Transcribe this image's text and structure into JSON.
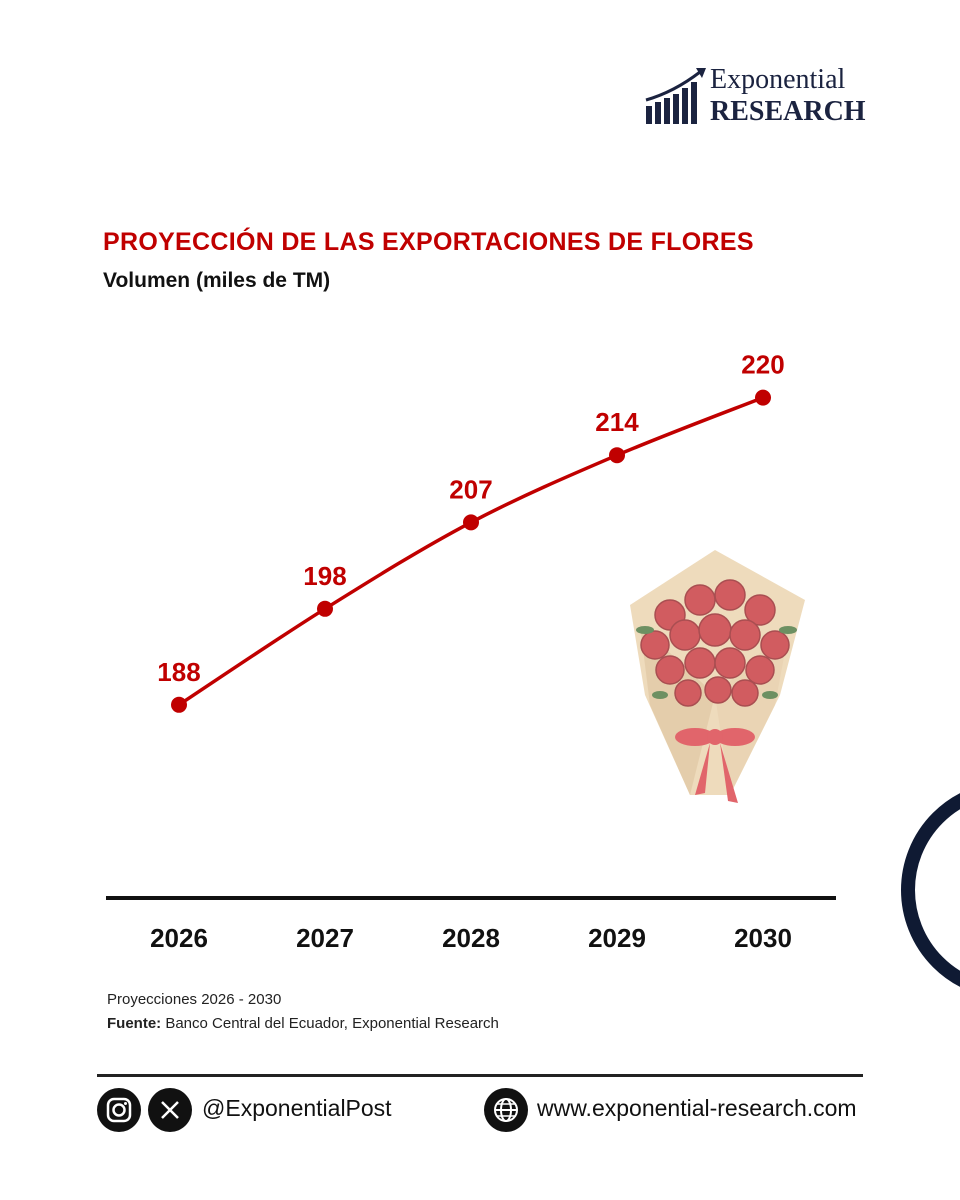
{
  "brand": {
    "line1": "Exponential",
    "line2": "RESEARCH"
  },
  "chart_data": {
    "type": "line",
    "title": "PROYECCIÓN DE LAS EXPORTACIONES DE FLORES",
    "subtitle": "Volumen (miles de TM)",
    "categories": [
      "2026",
      "2027",
      "2028",
      "2029",
      "2030"
    ],
    "values": [
      188,
      198,
      207,
      214,
      220
    ],
    "data_labels": [
      "188",
      "198",
      "207",
      "214",
      "220"
    ],
    "ylim": [
      176,
      226
    ],
    "grid": false,
    "legend": "none",
    "colors": {
      "line": "#c00000",
      "labels": "#c00000",
      "axis": "#111111",
      "title": "#c00000"
    }
  },
  "notes": {
    "projection": "Proyecciones 2026 - 2030",
    "source_label": "Fuente:",
    "source_text": " Banco Central del Ecuador, Exponential Research"
  },
  "footer": {
    "icons": [
      "instagram-icon",
      "x-icon",
      "globe-icon"
    ],
    "handle": "@ExponentialPost",
    "website": "www.exponential-research.com"
  }
}
